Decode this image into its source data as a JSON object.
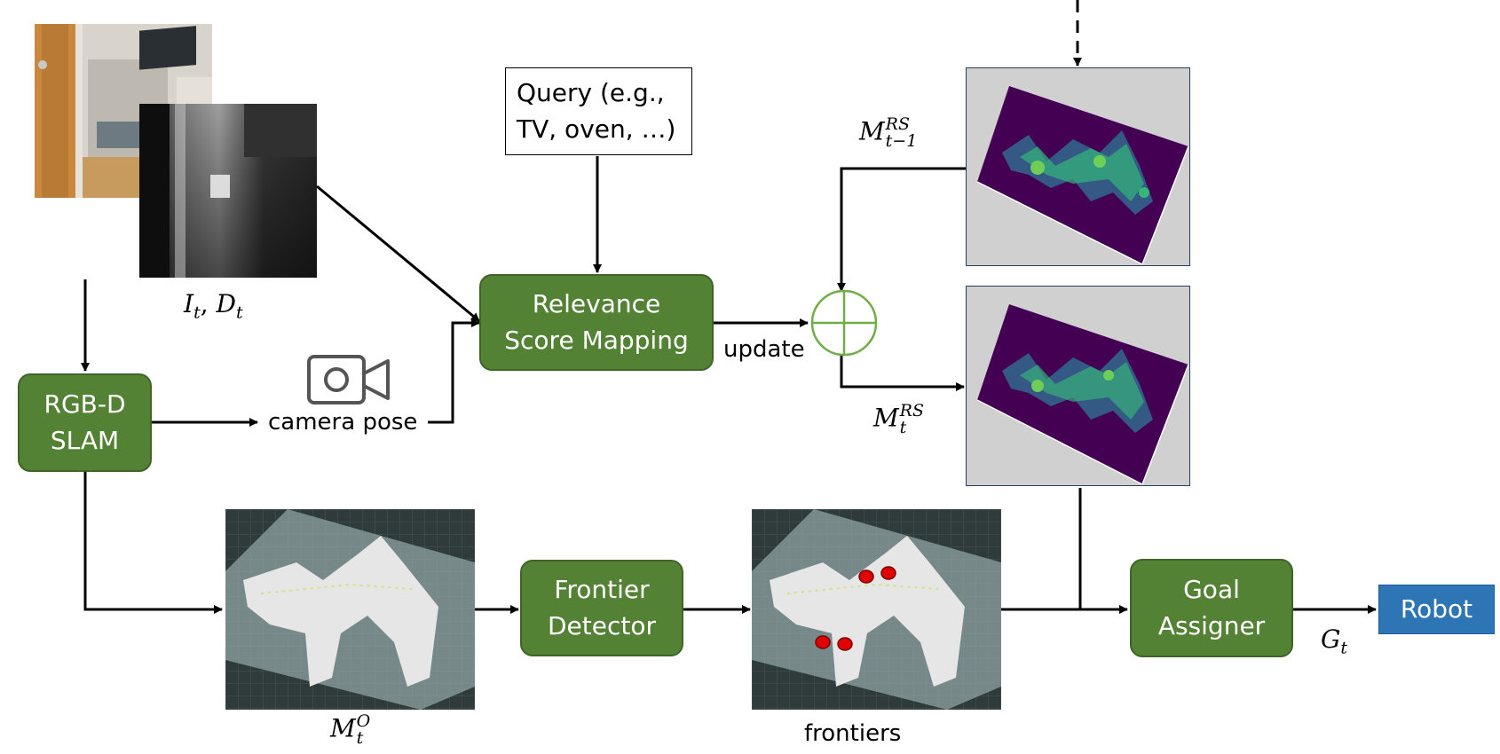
{
  "colors": {
    "module_green": "#548235",
    "robot_blue": "#2e75b6",
    "arrow": "#000000",
    "plus_circle": "#70ad47",
    "heatmap_bg": "#440154",
    "map_grid_bg": "#2f3a3a"
  },
  "query": "Query (e.g.,\nTV, oven, …)",
  "modules": {
    "relevance": "Relevance\nScore Mapping",
    "slam": "RGB-D\nSLAM",
    "frontier": "Frontier\nDetector",
    "goal": "Goal\nAssigner",
    "robot": "Robot"
  },
  "labels": {
    "camera_pose": "camera pose",
    "update": "update",
    "frontiers": "frontiers"
  },
  "math": {
    "input_I": "I",
    "input_I_sub": "t",
    "input_D": "D",
    "input_D_sub": "t",
    "rs_prev": "M",
    "rs_prev_sup": "RS",
    "rs_prev_sub": "t−1",
    "rs_cur": "M",
    "rs_cur_sup": "RS",
    "rs_cur_sub": "t",
    "occ": "M",
    "occ_sup": "O",
    "occ_sub": "t",
    "goal": "G",
    "goal_sub": "t"
  },
  "icons": [
    "camera-icon",
    "plus-circle-icon"
  ]
}
